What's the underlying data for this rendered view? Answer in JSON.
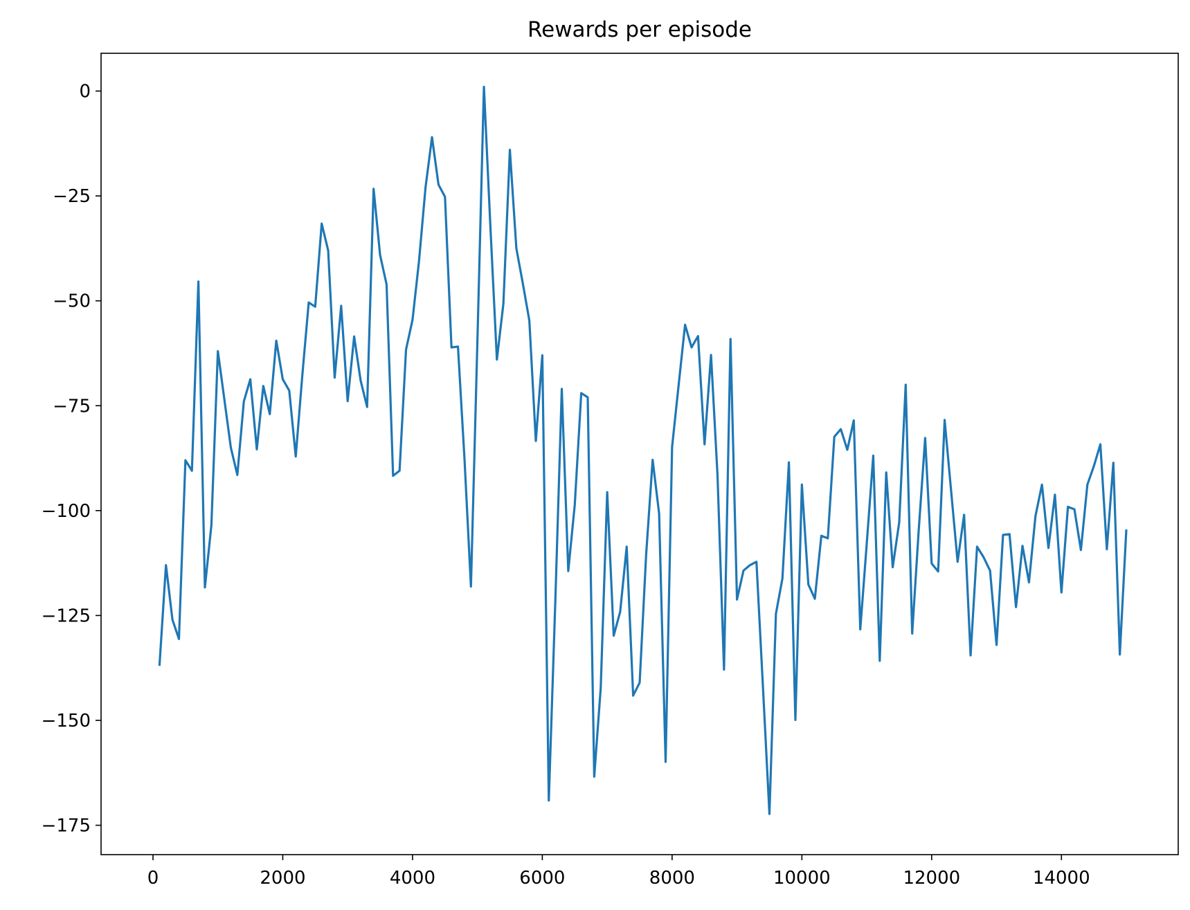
{
  "chart_data": {
    "type": "line",
    "title": "Rewards per episode",
    "xlabel": "",
    "ylabel": "",
    "xlim": [
      -800,
      15800
    ],
    "ylim": [
      -182,
      9
    ],
    "grid": false,
    "legend": "none",
    "line_color": "#1f77b4",
    "x_ticks": [
      0,
      2000,
      4000,
      6000,
      8000,
      10000,
      12000,
      14000
    ],
    "x_tick_labels": [
      "0",
      "2000",
      "4000",
      "6000",
      "8000",
      "10000",
      "12000",
      "14000"
    ],
    "y_ticks": [
      0,
      -25,
      -50,
      -75,
      -100,
      -125,
      -150,
      -175
    ],
    "y_tick_labels": [
      "0",
      "−25",
      "−50",
      "−75",
      "−100",
      "−125",
      "−150",
      "−175"
    ],
    "series": [
      {
        "x": [
          100,
          200,
          300,
          400,
          500,
          600,
          700,
          800,
          900,
          1000,
          1100,
          1200,
          1300,
          1400,
          1500,
          1600,
          1700,
          1800,
          1900,
          2000,
          2100,
          2200,
          2300,
          2400,
          2500,
          2600,
          2700,
          2800,
          2900,
          3000,
          3100,
          3200,
          3300,
          3400,
          3500,
          3600,
          3700,
          3800,
          3900,
          4000,
          4100,
          4200,
          4300,
          4400,
          4500,
          4600,
          4700,
          4800,
          4900,
          5000,
          5100,
          5200,
          5300,
          5400,
          5500,
          5600,
          5700,
          5800,
          5900,
          6000,
          6100,
          6200,
          6300,
          6400,
          6500,
          6600,
          6700,
          6800,
          6900,
          7000,
          7100,
          7200,
          7300,
          7400,
          7500,
          7600,
          7700,
          7800,
          7900,
          8000,
          8100,
          8200,
          8300,
          8400,
          8500,
          8600,
          8700,
          8800,
          8900,
          9000,
          9100,
          9200,
          9300,
          9400,
          9500,
          9600,
          9700,
          9800,
          9900,
          10000,
          10100,
          10200,
          10300,
          10400,
          10500,
          10600,
          10700,
          10800,
          10900,
          11000,
          11100,
          11200,
          11300,
          11400,
          11500,
          11600,
          11700,
          11800,
          11900,
          12000,
          12100,
          12200,
          12300,
          12400,
          12500,
          12600,
          12700,
          12800,
          12900,
          13000,
          13100,
          13200,
          13300,
          13400,
          13500,
          13600,
          13700,
          13800,
          13900,
          14000,
          14100,
          14200,
          14300,
          14400,
          14500,
          14600,
          14700,
          14800,
          14900,
          15000
        ],
        "y": [
          -137.0,
          -113.0,
          -126.0,
          -130.6,
          -88.0,
          -90.5,
          -45.4,
          -118.3,
          -103.5,
          -62.0,
          -73.5,
          -85.0,
          -91.5,
          -74.0,
          -68.7,
          -85.4,
          -70.3,
          -77.0,
          -59.5,
          -68.7,
          -71.4,
          -87.1,
          -68.0,
          -50.4,
          -51.4,
          -31.6,
          -38.0,
          -68.3,
          -51.2,
          -73.9,
          -58.5,
          -69.0,
          -75.3,
          -23.3,
          -39.1,
          -46.1,
          -91.7,
          -90.5,
          -61.6,
          -54.5,
          -40.5,
          -23.0,
          -11.0,
          -22.3,
          -25.2,
          -61.1,
          -60.9,
          -87.5,
          -118.1,
          -59.4,
          1.0,
          -32.4,
          -64.0,
          -50.7,
          -14.0,
          -37.5,
          -45.9,
          -54.7,
          -83.4,
          -63.0,
          -169.1,
          -121.8,
          -71.0,
          -114.4,
          -98.6,
          -72.0,
          -73.0,
          -163.4,
          -142.3,
          -95.6,
          -129.8,
          -124.1,
          -108.6,
          -144.1,
          -141.0,
          -110.5,
          -87.9,
          -100.7,
          -159.9,
          -84.8,
          -70.2,
          -55.7,
          -61.1,
          -58.4,
          -84.2,
          -62.9,
          -91.6,
          -137.9,
          -59.1,
          -121.2,
          -114.3,
          -113.0,
          -112.2,
          -142.0,
          -172.3,
          -124.6,
          -116.2,
          -88.5,
          -149.9,
          -93.8,
          -117.6,
          -121.0,
          -106.0,
          -106.6,
          -82.4,
          -80.6,
          -85.5,
          -78.5,
          -128.3,
          -107.8,
          -86.9,
          -135.8,
          -90.9,
          -113.5,
          -102.8,
          -70.0,
          -129.3,
          -104.8,
          -82.7,
          -112.6,
          -114.5,
          -78.4,
          -95.3,
          -112.2,
          -101.0,
          -134.5,
          -108.6,
          -111.1,
          -114.3,
          -132.0,
          -105.8,
          -105.6,
          -123.0,
          -108.4,
          -117.1,
          -101.3,
          -93.8,
          -108.9,
          -96.2,
          -119.5,
          -99.1,
          -99.7,
          -109.4,
          -93.8,
          -89.4,
          -84.2,
          -109.2,
          -88.6,
          -134.3,
          -104.5
        ]
      }
    ]
  }
}
